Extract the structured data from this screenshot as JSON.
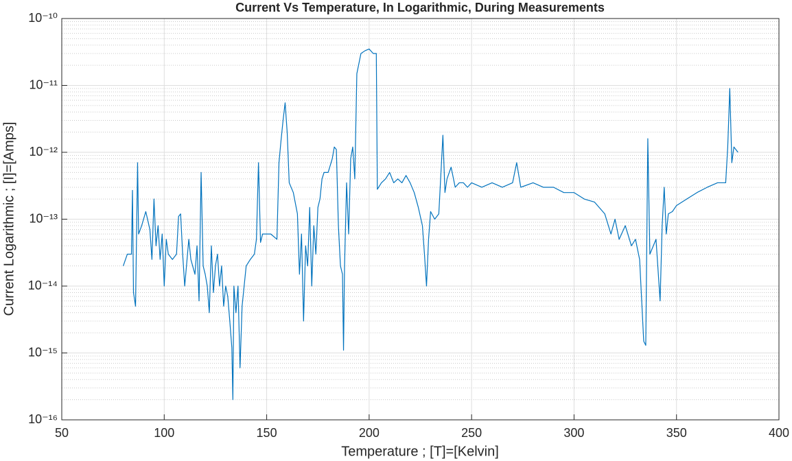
{
  "chart_data": {
    "type": "line",
    "title": "Current Vs Temperature, In Logarithmic, During Measurements",
    "xlabel": "Temperature ; [T]=[Kelvin]",
    "ylabel": "Current Logarithmic ; [I]=[Amps]",
    "color": "#0072bd",
    "yscale": "log",
    "grid": true,
    "minor_grid": true,
    "xlim": [
      50,
      400
    ],
    "xticks": [
      50,
      100,
      150,
      200,
      250,
      300,
      350,
      400
    ],
    "ylim": [
      1e-16,
      1e-10
    ],
    "yticks": [
      {
        "value": 1e-16,
        "label": "10⁻¹⁶"
      },
      {
        "value": 1e-15,
        "label": "10⁻¹⁵"
      },
      {
        "value": 1e-14,
        "label": "10⁻¹⁴"
      },
      {
        "value": 1e-13,
        "label": "10⁻¹³"
      },
      {
        "value": 1e-12,
        "label": "10⁻¹²"
      },
      {
        "value": 1e-11,
        "label": "10⁻¹¹"
      },
      {
        "value": 1e-10,
        "label": "10⁻¹⁰"
      }
    ],
    "yminorticks": [
      2e-16,
      3e-16,
      4e-16,
      5e-16,
      6e-16,
      7e-16,
      8e-16,
      9e-16,
      2e-15,
      3e-15,
      4e-15,
      5e-15,
      6e-15,
      7e-15,
      8e-15,
      9e-15,
      2e-14,
      3e-14,
      4e-14,
      5e-14,
      6e-14,
      7e-14,
      8e-14,
      9e-14,
      2e-13,
      3e-13,
      4e-13,
      5e-13,
      6e-13,
      7e-13,
      8e-13,
      9e-13,
      2e-12,
      3e-12,
      4e-12,
      5e-12,
      6e-12,
      7e-12,
      8e-12,
      9e-12,
      2e-11,
      3e-11,
      4e-11,
      5e-11,
      6e-11,
      7e-11,
      8e-11,
      9e-11
    ],
    "x": [
      80,
      82,
      84,
      84.5,
      85,
      86,
      87,
      87.5,
      89,
      91,
      93,
      94,
      95,
      96,
      97,
      98,
      99,
      100,
      101,
      102,
      104,
      106,
      107,
      108,
      109,
      110,
      112,
      113,
      115,
      116,
      117,
      118,
      119,
      120,
      121,
      122,
      123,
      124,
      125,
      126,
      127,
      128,
      129,
      130,
      131,
      132,
      133,
      133.5,
      134,
      135,
      136,
      137,
      138,
      139,
      140,
      142,
      144,
      145,
      146,
      147,
      148,
      150,
      152,
      155,
      156,
      157,
      158,
      159,
      160,
      161,
      163,
      165,
      166,
      167,
      168,
      169,
      170,
      171,
      172,
      173,
      174,
      175,
      176,
      177,
      178,
      180,
      182,
      183,
      184,
      185,
      186,
      187,
      187.5,
      188,
      189,
      190,
      191,
      192,
      193,
      194,
      196,
      198,
      200,
      202,
      203.5,
      204,
      206,
      208,
      210,
      212,
      214,
      216,
      218,
      220,
      222,
      224,
      226,
      227,
      228,
      229,
      230,
      232,
      234,
      236,
      237,
      238,
      240,
      242,
      244,
      246,
      248,
      250,
      255,
      260,
      265,
      270,
      272,
      274,
      280,
      285,
      290,
      295,
      300,
      305,
      310,
      315,
      318,
      320,
      322,
      325,
      328,
      330,
      332,
      334,
      335,
      336,
      337,
      340,
      342,
      343,
      344,
      345,
      346,
      348,
      350,
      355,
      360,
      365,
      370,
      374,
      375,
      376,
      377,
      378,
      380
    ],
    "values": [
      2e-14,
      3e-14,
      3e-14,
      2.7e-13,
      8e-15,
      5e-15,
      7e-13,
      6e-14,
      8e-14,
      1.3e-13,
      7e-14,
      2.5e-14,
      2e-13,
      4e-14,
      8e-14,
      2.5e-14,
      6e-14,
      1e-14,
      5e-14,
      3e-14,
      2.5e-14,
      3e-14,
      1.1e-13,
      1.2e-13,
      3e-14,
      1e-14,
      5e-14,
      2.5e-14,
      1.5e-14,
      4e-14,
      6e-15,
      5e-13,
      2e-14,
      1.5e-14,
      1e-14,
      4e-15,
      4e-14,
      8e-15,
      2e-14,
      3e-14,
      1e-14,
      2e-14,
      5e-15,
      1e-14,
      7e-15,
      3e-15,
      1.2e-15,
      2e-16,
      1e-14,
      4e-15,
      1e-14,
      6e-16,
      5e-15,
      1e-14,
      2e-14,
      2.5e-14,
      3e-14,
      5e-14,
      7e-13,
      4.5e-14,
      6e-14,
      6e-14,
      6e-14,
      5e-14,
      7e-13,
      1.5e-12,
      3e-12,
      5.5e-12,
      2e-12,
      3.5e-13,
      2.5e-13,
      1.2e-13,
      1.5e-14,
      6e-14,
      3e-15,
      4e-14,
      2e-14,
      1.5e-13,
      1e-14,
      8e-14,
      3e-14,
      1.5e-13,
      2e-13,
      4e-13,
      5e-13,
      5e-13,
      8e-13,
      1.2e-12,
      1.1e-12,
      8e-14,
      2e-14,
      1.5e-14,
      1.1e-15,
      2e-14,
      3.5e-13,
      6e-14,
      8e-13,
      1.2e-12,
      4e-13,
      1.5e-11,
      3e-11,
      3.3e-11,
      3.5e-11,
      3e-11,
      3e-11,
      2.8e-13,
      3.5e-13,
      4e-13,
      5e-13,
      3.5e-13,
      4e-13,
      3.5e-13,
      4.5e-13,
      3.5e-13,
      2.5e-13,
      1.5e-13,
      8e-14,
      3e-14,
      1e-14,
      5e-14,
      1.3e-13,
      1e-13,
      1.2e-13,
      1.8e-12,
      2.5e-13,
      4e-13,
      6e-13,
      3e-13,
      3.5e-13,
      3.5e-13,
      3e-13,
      3.5e-13,
      3e-13,
      3.5e-13,
      3e-13,
      3.5e-13,
      7e-13,
      3e-13,
      3.5e-13,
      3e-13,
      3e-13,
      2.5e-13,
      2.5e-13,
      2e-13,
      1.8e-13,
      1.2e-13,
      6e-14,
      1e-13,
      5e-14,
      8e-14,
      4e-14,
      5e-14,
      2.5e-14,
      1.5e-15,
      1.3e-15,
      1.6e-12,
      3e-14,
      5e-14,
      6e-15,
      8e-14,
      3e-13,
      6e-14,
      1.2e-13,
      1.3e-13,
      1.6e-13,
      2e-13,
      2.5e-13,
      3e-13,
      3.5e-13,
      3.5e-13,
      1.2e-12,
      9e-12,
      7e-13,
      1.2e-12,
      1e-12
    ]
  }
}
